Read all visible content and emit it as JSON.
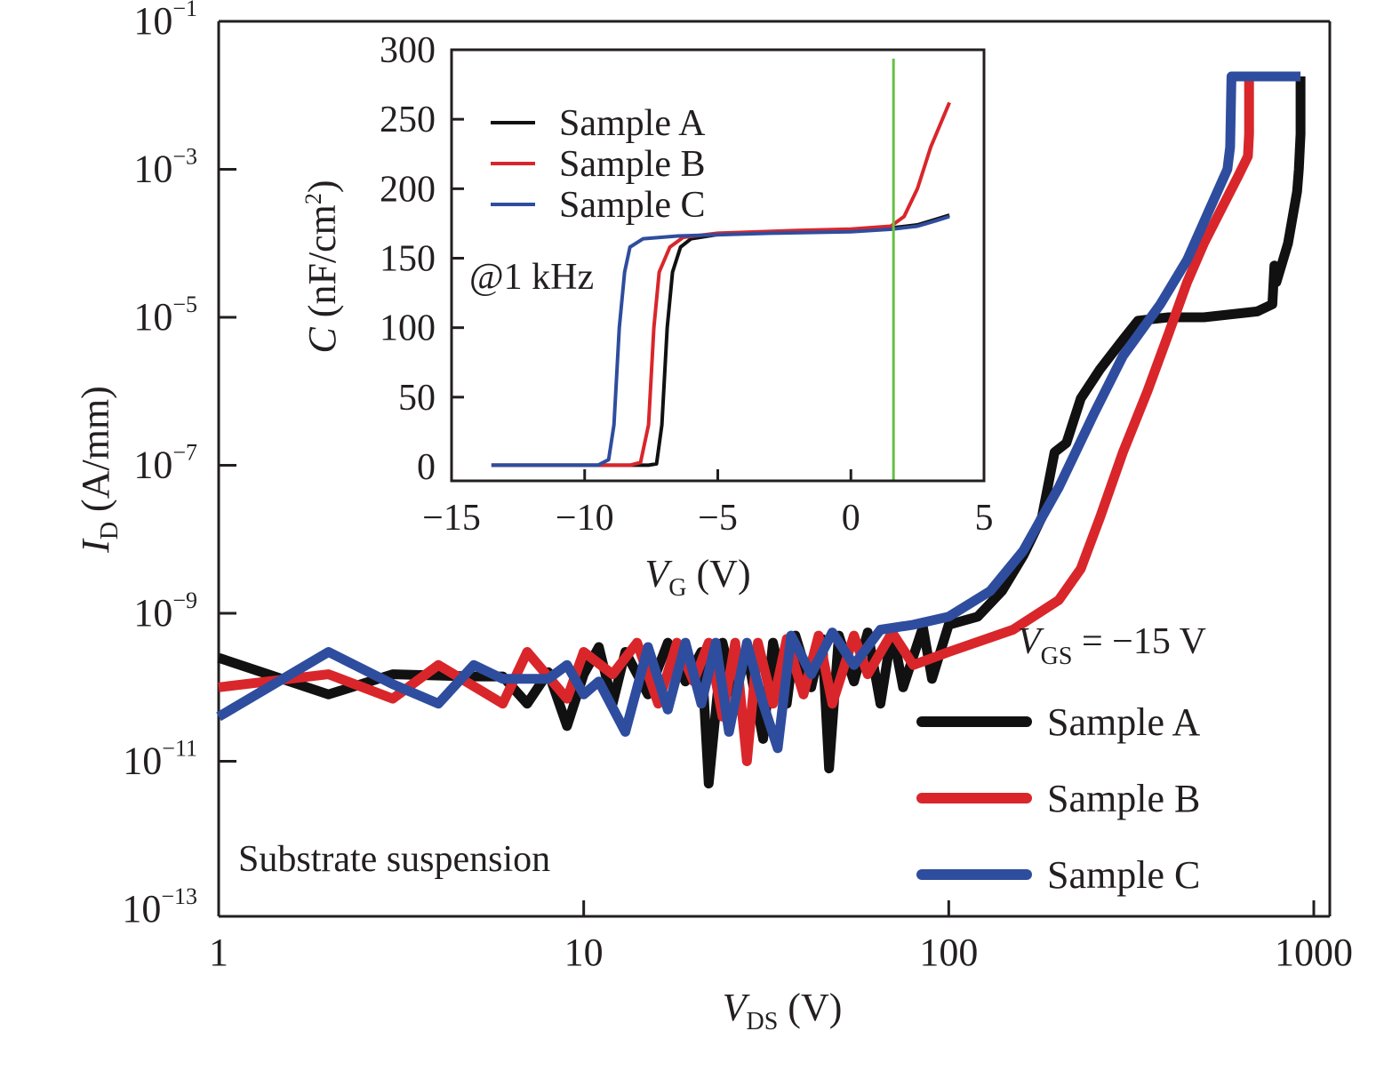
{
  "chart_data": [
    {
      "id": "main",
      "type": "line",
      "title": "",
      "xlabel": "V_DS (V)",
      "xlabel_main": "V",
      "xlabel_sub": "DS",
      "xlabel_unit": " (V)",
      "ylabel": "I_D (A/mm)",
      "ylabel_main": "I",
      "ylabel_sub": "D",
      "ylabel_unit": " (A/mm)",
      "xscale": "log",
      "yscale": "log",
      "xlim": [
        1,
        1000
      ],
      "ylim": [
        1e-13,
        0.1
      ],
      "xticks": [
        {
          "value": 1,
          "label": "1"
        },
        {
          "value": 10,
          "label": "10"
        },
        {
          "value": 100,
          "label": "100"
        },
        {
          "value": 1000,
          "label": "1000"
        }
      ],
      "yticks": [
        {
          "value": -1,
          "base": "10",
          "exp": "−1"
        },
        {
          "value": -3,
          "base": "10",
          "exp": "−3"
        },
        {
          "value": -5,
          "base": "10",
          "exp": "−5"
        },
        {
          "value": -7,
          "base": "10",
          "exp": "−7"
        },
        {
          "value": -9,
          "base": "10",
          "exp": "−9"
        },
        {
          "value": -11,
          "base": "10",
          "exp": "−11"
        },
        {
          "value": -13,
          "base": "10",
          "exp": "−13"
        }
      ],
      "grid": false,
      "annotations": {
        "condition_main": "V",
        "condition_sub": "GS",
        "condition_value": " = −15 V",
        "substrate": "Substrate suspension"
      },
      "legend_position": "bottom-right",
      "series": [
        {
          "name": "Sample A",
          "color": "#111111",
          "points_log10": [
            [
              1,
              2.5e-10
            ],
            [
              2,
              8e-11
            ],
            [
              3,
              1.5e-10
            ],
            [
              5,
              1.4e-10
            ],
            [
              6,
              1.4e-10
            ],
            [
              7,
              6e-11
            ],
            [
              8,
              1.6e-10
            ],
            [
              9,
              3e-11
            ],
            [
              10,
              1.5e-10
            ],
            [
              11,
              3.5e-10
            ],
            [
              12,
              6e-11
            ],
            [
              13,
              3e-10
            ],
            [
              15,
              8e-11
            ],
            [
              17,
              4e-10
            ],
            [
              19,
              1.2e-10
            ],
            [
              21,
              3e-10
            ],
            [
              22,
              5e-12
            ],
            [
              24,
              4e-10
            ],
            [
              26,
              8e-11
            ],
            [
              28,
              3e-10
            ],
            [
              31,
              2e-11
            ],
            [
              33,
              4e-10
            ],
            [
              36,
              6e-11
            ],
            [
              38,
              5e-10
            ],
            [
              42,
              1e-10
            ],
            [
              45,
              4.5e-10
            ],
            [
              47,
              8e-12
            ],
            [
              50,
              5e-10
            ],
            [
              55,
              1.2e-10
            ],
            [
              60,
              5.5e-10
            ],
            [
              65,
              6e-11
            ],
            [
              70,
              6e-10
            ],
            [
              75,
              1e-10
            ],
            [
              85,
              6.5e-10
            ],
            [
              90,
              1.3e-10
            ],
            [
              100,
              7e-10
            ],
            [
              120,
              9e-10
            ],
            [
              140,
              2e-09
            ],
            [
              160,
              6e-09
            ],
            [
              180,
              2e-08
            ],
            [
              195,
              1.5e-07
            ],
            [
              210,
              2e-07
            ],
            [
              230,
              8e-07
            ],
            [
              260,
              2e-06
            ],
            [
              300,
              5e-06
            ],
            [
              330,
              9e-06
            ],
            [
              400,
              1e-05
            ],
            [
              500,
              1e-05
            ],
            [
              700,
              1.2e-05
            ],
            [
              770,
              1.5e-05
            ],
            [
              780,
              5e-05
            ],
            [
              790,
              3e-05
            ],
            [
              850,
              0.0001
            ],
            [
              900,
              0.0005
            ],
            [
              910,
              0.001
            ],
            [
              920,
              0.003
            ],
            [
              920,
              0.018
            ]
          ]
        },
        {
          "name": "Sample B",
          "color": "#d9262b",
          "points_log10": [
            [
              1,
              1e-10
            ],
            [
              2,
              1.5e-10
            ],
            [
              3,
              7e-11
            ],
            [
              4,
              2e-10
            ],
            [
              6,
              6e-11
            ],
            [
              7,
              3e-10
            ],
            [
              9,
              7e-11
            ],
            [
              10,
              3e-10
            ],
            [
              12,
              1.5e-10
            ],
            [
              14,
              4e-10
            ],
            [
              16,
              6e-11
            ],
            [
              18,
              4e-10
            ],
            [
              20,
              1.2e-10
            ],
            [
              22,
              4e-10
            ],
            [
              24,
              4e-11
            ],
            [
              26,
              4e-10
            ],
            [
              28,
              1e-11
            ],
            [
              30,
              4e-10
            ],
            [
              33,
              6e-11
            ],
            [
              36,
              4.5e-10
            ],
            [
              40,
              8e-11
            ],
            [
              44,
              5e-10
            ],
            [
              48,
              6e-11
            ],
            [
              55,
              5e-10
            ],
            [
              60,
              1.5e-10
            ],
            [
              70,
              5.5e-10
            ],
            [
              80,
              2e-10
            ],
            [
              100,
              3e-10
            ],
            [
              150,
              6e-10
            ],
            [
              200,
              1.5e-09
            ],
            [
              230,
              4e-09
            ],
            [
              260,
              2e-08
            ],
            [
              300,
              1.5e-07
            ],
            [
              350,
              1e-06
            ],
            [
              400,
              6e-06
            ],
            [
              450,
              3e-05
            ],
            [
              500,
              0.0001
            ],
            [
              560,
              0.0003
            ],
            [
              620,
              0.0008
            ],
            [
              660,
              0.0015
            ],
            [
              665,
              0.003
            ],
            [
              665,
              0.02
            ]
          ]
        },
        {
          "name": "Sample C",
          "color": "#2f4d9e",
          "points_log10": [
            [
              1,
              4e-11
            ],
            [
              2,
              3e-10
            ],
            [
              3,
              1.1e-10
            ],
            [
              4,
              6e-11
            ],
            [
              5,
              2e-10
            ],
            [
              6,
              1.3e-10
            ],
            [
              8,
              1.3e-10
            ],
            [
              9,
              2e-10
            ],
            [
              10,
              8e-11
            ],
            [
              11,
              1.2e-10
            ],
            [
              13,
              2.5e-11
            ],
            [
              15,
              3.5e-10
            ],
            [
              17,
              5e-11
            ],
            [
              19,
              4e-10
            ],
            [
              21,
              6e-11
            ],
            [
              23,
              4e-10
            ],
            [
              25,
              2.5e-11
            ],
            [
              28,
              4e-10
            ],
            [
              31,
              6e-11
            ],
            [
              34,
              1.5e-11
            ],
            [
              37,
              5e-10
            ],
            [
              42,
              1.5e-10
            ],
            [
              48,
              5.5e-10
            ],
            [
              55,
              2e-10
            ],
            [
              65,
              6e-10
            ],
            [
              80,
              7e-10
            ],
            [
              100,
              9e-10
            ],
            [
              130,
              2e-09
            ],
            [
              160,
              7e-09
            ],
            [
              200,
              5e-08
            ],
            [
              250,
              5e-07
            ],
            [
              300,
              3e-06
            ],
            [
              380,
              1.5e-05
            ],
            [
              450,
              6e-05
            ],
            [
              520,
              0.0003
            ],
            [
              580,
              0.001
            ],
            [
              590,
              0.002
            ],
            [
              595,
              0.018
            ],
            [
              920,
              0.018
            ]
          ]
        }
      ]
    },
    {
      "id": "inset",
      "type": "line",
      "title": "",
      "xlabel": "V_G (V)",
      "xlabel_main": "V",
      "xlabel_sub": "G",
      "xlabel_unit": " (V)",
      "ylabel": "C (nF/cm²)",
      "ylabel_main": "C",
      "ylabel_unit": " (nF/cm",
      "ylabel_sup": "2",
      "ylabel_close": ")",
      "xlim": [
        -15,
        5
      ],
      "ylim": [
        0,
        300
      ],
      "xticks": [
        -15,
        -10,
        -5,
        0,
        5
      ],
      "xtick_labels": [
        "−15",
        "−10",
        "−5",
        "0",
        "5"
      ],
      "yticks": [
        0,
        50,
        100,
        150,
        200,
        250,
        300
      ],
      "ytick_labels": [
        "0",
        "50",
        "100",
        "150",
        "200",
        "250",
        "300"
      ],
      "grid": false,
      "annotation": "@1 kHz",
      "vertical_marker": {
        "x": 1.6,
        "color": "#6abf45"
      },
      "legend_position": "top-left",
      "series": [
        {
          "name": "Sample A",
          "color": "#111111",
          "points": [
            [
              -13.5,
              1
            ],
            [
              -7.6,
              1
            ],
            [
              -7.3,
              2
            ],
            [
              -7.1,
              30
            ],
            [
              -6.9,
              100
            ],
            [
              -6.7,
              140
            ],
            [
              -6.4,
              158
            ],
            [
              -6.0,
              164
            ],
            [
              -5.0,
              167
            ],
            [
              -2,
              169
            ],
            [
              0,
              170
            ],
            [
              1.6,
              172
            ],
            [
              2.5,
              174
            ],
            [
              3.2,
              178
            ],
            [
              3.7,
              181
            ]
          ]
        },
        {
          "name": "Sample B",
          "color": "#d9262b",
          "points": [
            [
              -13.5,
              1
            ],
            [
              -8.3,
              1
            ],
            [
              -7.9,
              3
            ],
            [
              -7.6,
              30
            ],
            [
              -7.4,
              100
            ],
            [
              -7.2,
              140
            ],
            [
              -6.8,
              158
            ],
            [
              -6.3,
              165
            ],
            [
              -5.0,
              168
            ],
            [
              -2,
              170
            ],
            [
              0,
              171
            ],
            [
              1.5,
              173
            ],
            [
              2.0,
              180
            ],
            [
              2.5,
              200
            ],
            [
              3.0,
              230
            ],
            [
              3.7,
              262
            ]
          ]
        },
        {
          "name": "Sample C",
          "color": "#2f4d9e",
          "points": [
            [
              -13.5,
              1
            ],
            [
              -9.5,
              1
            ],
            [
              -9.1,
              5
            ],
            [
              -8.9,
              30
            ],
            [
              -8.7,
              100
            ],
            [
              -8.5,
              140
            ],
            [
              -8.3,
              158
            ],
            [
              -7.8,
              164
            ],
            [
              -6.5,
              166
            ],
            [
              -3,
              168
            ],
            [
              0,
              169
            ],
            [
              1.6,
              171
            ],
            [
              2.5,
              173
            ],
            [
              3.2,
              177
            ],
            [
              3.7,
              180
            ]
          ]
        }
      ]
    }
  ]
}
